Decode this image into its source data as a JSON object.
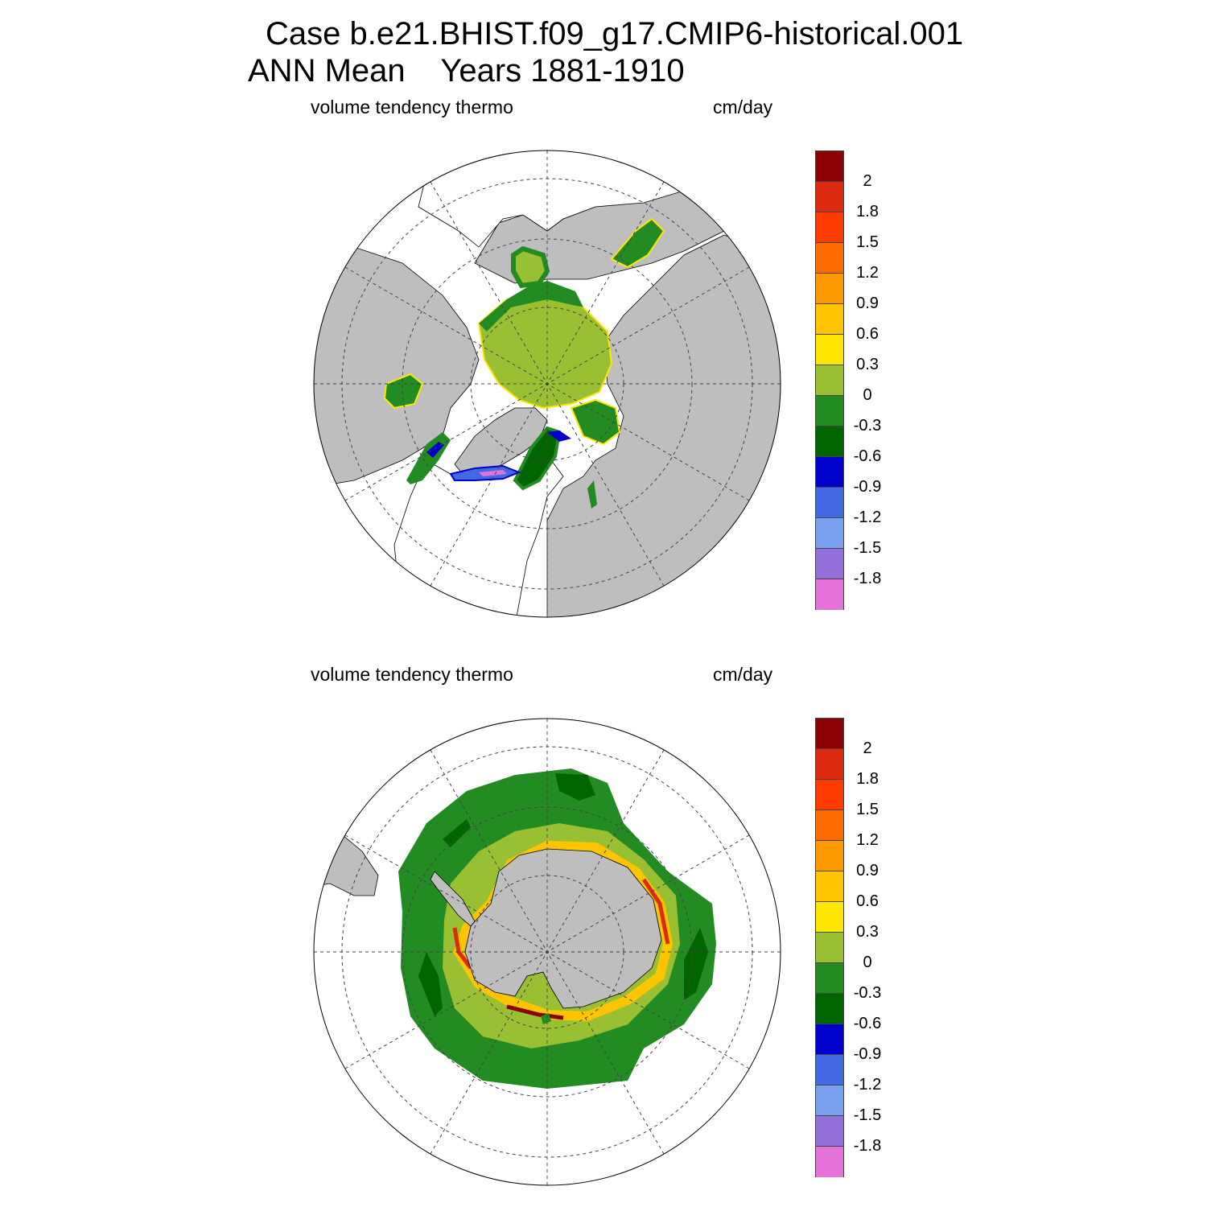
{
  "title": {
    "line1": "Case b.e21.BHIST.f09_g17.CMIP6-historical.001",
    "line2": "ANN Mean    Years 1881-1910"
  },
  "panels": [
    {
      "id": "north",
      "hemisphere": "Northern Hemisphere (Arctic)",
      "left_label": "volume tendency thermo",
      "right_label": "cm/day"
    },
    {
      "id": "south",
      "hemisphere": "Southern Hemisphere (Antarctic)",
      "left_label": "volume tendency thermo",
      "right_label": "cm/day"
    }
  ],
  "colorbar": {
    "colors": [
      "#8b0000",
      "#dc2a10",
      "#ff3c00",
      "#ff6a00",
      "#ff9a00",
      "#ffc400",
      "#ffe600",
      "#99bf33",
      "#228b22",
      "#006400",
      "#0000cc",
      "#4169e1",
      "#7aa0f0",
      "#9370db",
      "#e472d9"
    ],
    "tick_labels": [
      "2",
      "1.8",
      "1.5",
      "1.2",
      "0.9",
      "0.6",
      "0.3",
      "0",
      "-0.3",
      "-0.6",
      "-0.9",
      "-1.2",
      "-1.5",
      "-1.8"
    ]
  },
  "colors": {
    "land": "#bebebe",
    "positive_small": "#99bf33",
    "negative_small": "#228b22",
    "negative_mid": "#006400",
    "melt_edge": "#ffe600"
  }
}
